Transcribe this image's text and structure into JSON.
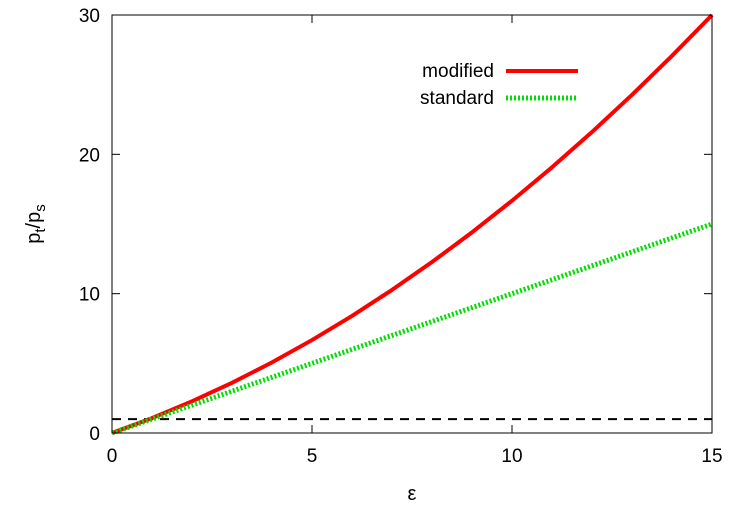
{
  "chart_data": {
    "type": "line",
    "title": "",
    "xlabel": "ε",
    "ylabel_main": "p",
    "ylabel_sub1": "t",
    "ylabel_sep": "/p",
    "ylabel_sub2": "s",
    "xlim": [
      0,
      15
    ],
    "ylim": [
      0,
      30
    ],
    "xticks": [
      0,
      5,
      10,
      15
    ],
    "yticks": [
      0,
      10,
      20,
      30
    ],
    "grid": false,
    "legend_position": "top-right",
    "reference_line": {
      "y": 1,
      "style": "dashed",
      "color": "#000000"
    },
    "series": [
      {
        "name": "modified",
        "color": "#ff0000",
        "style": "solid",
        "x": [
          0,
          1,
          2,
          3,
          4,
          5,
          6,
          7,
          8,
          9,
          10,
          11,
          12,
          13,
          14,
          15
        ],
        "y": [
          0,
          1.07,
          2.27,
          3.6,
          5.07,
          6.67,
          8.4,
          10.27,
          12.27,
          14.4,
          16.67,
          19.07,
          21.6,
          24.27,
          27.07,
          30.0
        ]
      },
      {
        "name": "standard",
        "color": "#00dd00",
        "style": "dotted",
        "x": [
          0,
          15
        ],
        "y": [
          0,
          15
        ]
      }
    ]
  }
}
